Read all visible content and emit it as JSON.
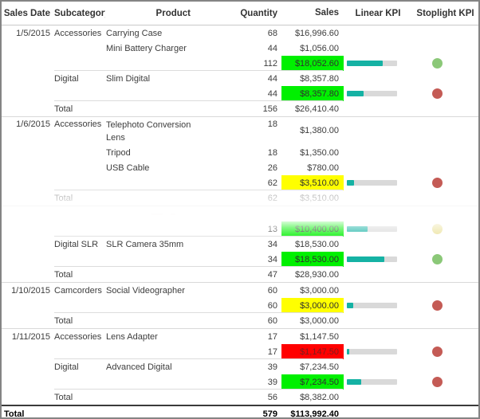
{
  "table": {
    "columns": [
      "Sales Date",
      "Subcategory",
      "Product",
      "Quantity",
      "Sales",
      "Linear KPI",
      "Stoplight KPI"
    ]
  },
  "rows": [
    {
      "type": "detail",
      "date": "1/5/2015",
      "subcategory": "Accessories",
      "product": "Carrying Case",
      "quantity": "68",
      "sales": "$16,996.60"
    },
    {
      "type": "detail",
      "product": "Mini Battery Charger",
      "quantity": "44",
      "sales": "$1,056.00"
    },
    {
      "type": "subtotal",
      "quantity": "112",
      "sales": "$18,052.60",
      "kpi": "green",
      "bar_pct": 72,
      "dot": "green"
    },
    {
      "type": "detail",
      "subcategory": "Digital",
      "product": "Slim Digital",
      "quantity": "44",
      "sales": "$8,357.80"
    },
    {
      "type": "subtotal",
      "quantity": "44",
      "sales": "$8,357.80",
      "kpi": "green",
      "bar_pct": 33,
      "dot": "red"
    },
    {
      "type": "total",
      "label": "Total",
      "quantity": "156",
      "sales": "$26,410.40"
    },
    {
      "type": "detail",
      "date": "1/6/2015",
      "subcategory": "Accessories",
      "product": "Telephoto Conversion Lens",
      "quantity": "18",
      "sales": "$1,380.00",
      "tall": true,
      "group_start": true
    },
    {
      "type": "detail",
      "product": "Tripod",
      "quantity": "18",
      "sales": "$1,350.00"
    },
    {
      "type": "detail",
      "product": "USB Cable",
      "quantity": "26",
      "sales": "$780.00"
    },
    {
      "type": "subtotal",
      "quantity": "62",
      "sales": "$3,510.00",
      "kpi": "yellow",
      "bar_pct": 14,
      "dot": "red"
    },
    {
      "type": "total",
      "label": "Total",
      "quantity": "62",
      "sales": "$3,510.00",
      "faded": true
    },
    {
      "type": "ghost",
      "group_start": true
    },
    {
      "type": "subtotal",
      "quantity": "13",
      "sales": "$10,400.00",
      "kpi": "green",
      "bar_pct": 42,
      "dot": "yellow"
    },
    {
      "type": "detail",
      "subcategory": "Digital SLR",
      "product": "SLR Camera 35mm",
      "quantity": "34",
      "sales": "$18,530.00"
    },
    {
      "type": "subtotal",
      "quantity": "34",
      "sales": "$18,530.00",
      "kpi": "green",
      "bar_pct": 74,
      "dot": "green"
    },
    {
      "type": "total",
      "label": "Total",
      "quantity": "47",
      "sales": "$28,930.00"
    },
    {
      "type": "detail",
      "date": "1/10/2015",
      "subcategory": "Camcorders",
      "product": "Social Videographer",
      "quantity": "60",
      "sales": "$3,000.00",
      "group_start": true
    },
    {
      "type": "subtotal",
      "quantity": "60",
      "sales": "$3,000.00",
      "kpi": "yellow",
      "bar_pct": 12,
      "dot": "red"
    },
    {
      "type": "total",
      "label": "Total",
      "quantity": "60",
      "sales": "$3,000.00"
    },
    {
      "type": "detail",
      "date": "1/11/2015",
      "subcategory": "Accessories",
      "product": "Lens Adapter",
      "quantity": "17",
      "sales": "$1,147.50",
      "group_start": true
    },
    {
      "type": "subtotal",
      "quantity": "17",
      "sales": "$1,147.50",
      "kpi": "red",
      "bar_pct": 5,
      "dot": "red"
    },
    {
      "type": "detail",
      "subcategory": "Digital",
      "product": "Advanced Digital",
      "quantity": "39",
      "sales": "$7,234.50"
    },
    {
      "type": "subtotal",
      "quantity": "39",
      "sales": "$7,234.50",
      "kpi": "green",
      "bar_pct": 29,
      "dot": "red"
    },
    {
      "type": "total",
      "label": "Total",
      "quantity": "56",
      "sales": "$8,382.00"
    },
    {
      "type": "grand_total",
      "label": "Total",
      "quantity": "579",
      "sales": "$113,992.40"
    }
  ],
  "colors": {
    "kpi_green": "#00f000",
    "kpi_yellow": "#ffff00",
    "kpi_red": "#ff0000",
    "kpi_red_text": "#7b1d1d",
    "bar_fill": "#15b2a4",
    "bar_track": "#d9d9d9",
    "dot_green": "#8bc878",
    "dot_red": "#c45b55",
    "dot_yellow": "#ebe19b",
    "frame_border": "#848484"
  }
}
